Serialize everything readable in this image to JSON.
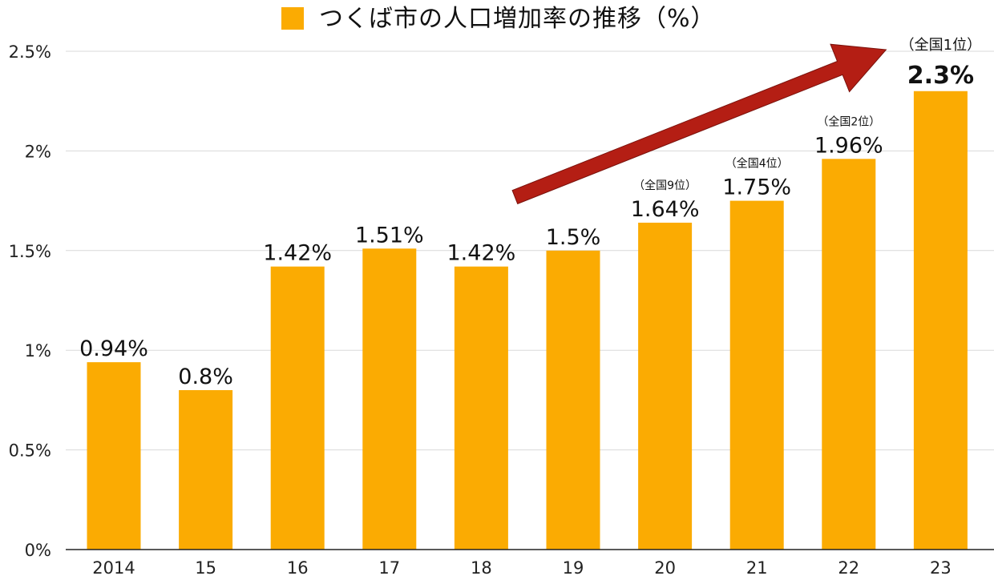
{
  "chart_data": {
    "type": "bar",
    "title": "つくば市の人口増加率の推移（%）",
    "legend": {
      "position": "top",
      "entries": [
        "つくば市の人口増加率の推移（%）"
      ]
    },
    "categories": [
      "2014",
      "15",
      "16",
      "17",
      "18",
      "19",
      "20",
      "21",
      "22",
      "23"
    ],
    "values": [
      0.94,
      0.8,
      1.42,
      1.51,
      1.42,
      1.5,
      1.64,
      1.75,
      1.96,
      2.3
    ],
    "value_labels": [
      "0.94%",
      "0.8%",
      "1.42%",
      "1.51%",
      "1.42%",
      "1.5%",
      "1.64%",
      "1.75%",
      "1.96%",
      "2.3%"
    ],
    "annotations": [
      {
        "category": "20",
        "text": "（全国9位）"
      },
      {
        "category": "21",
        "text": "（全国4位）"
      },
      {
        "category": "22",
        "text": "（全国2位）"
      },
      {
        "category": "23",
        "text": "（全国1位）"
      }
    ],
    "highlight": {
      "category": "23",
      "color": "#b41e14"
    },
    "trend_arrow": {
      "from_category": "18",
      "to_category": "23",
      "color": "#b41e14"
    },
    "ylim": [
      0,
      2.5
    ],
    "yticks": [
      0,
      0.5,
      1,
      1.5,
      2,
      2.5
    ],
    "ytick_labels": [
      "0%",
      "0.5%",
      "1%",
      "1.5%",
      "2%",
      "2.5%"
    ],
    "grid": true,
    "colors": {
      "bar": "#fbab02",
      "grid": "#d9d9d9",
      "axis": "#222222"
    }
  }
}
